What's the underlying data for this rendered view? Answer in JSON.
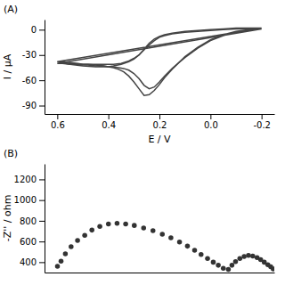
{
  "chart_data": [
    {
      "type": "line",
      "title": "(A)",
      "xlabel": "E / V",
      "ylabel": "I / μA",
      "xlim": [
        0.65,
        -0.25
      ],
      "ylim": [
        -100,
        12
      ],
      "xticks": [
        0.6,
        0.4,
        0.2,
        {
          "value": 0.0,
          "label": "0.0"
        },
        -0.2
      ],
      "yticks": [
        0,
        -30,
        -60,
        -90
      ],
      "x": [
        0.6,
        0.58,
        0.55,
        0.52,
        0.5,
        0.48,
        0.45,
        0.42,
        0.4,
        0.38,
        0.36,
        0.34,
        0.32,
        0.3,
        0.28,
        0.26,
        0.24,
        0.22,
        0.2,
        0.18,
        0.15,
        0.12,
        0.1,
        0.05,
        0.0,
        -0.05,
        -0.1,
        -0.15,
        -0.2,
        0.6,
        0.55,
        0.5,
        0.45,
        0.4,
        0.38,
        0.35,
        0.32,
        0.3,
        0.28,
        0.26,
        0.24,
        0.22,
        0.2,
        0.18,
        0.15,
        0.1,
        0.05,
        0.0,
        -0.05,
        -0.1,
        -0.15,
        -0.2
      ],
      "series": [
        {
          "color": "#444444",
          "values": [
            -40,
            -40,
            -41,
            -41,
            -42,
            -42,
            -43,
            -43,
            -44,
            -44,
            -45,
            -46,
            -48,
            -52,
            -58,
            -66,
            -70,
            -68,
            -62,
            -55,
            -46,
            -38,
            -33,
            -22,
            -13,
            -7,
            -3,
            -1,
            1,
            -40,
            -40,
            -41,
            -41,
            -41,
            -41,
            -40,
            -37,
            -34,
            -30,
            -24,
            -18,
            -13,
            -9,
            -7,
            -5,
            -3,
            -2,
            -1,
            0,
            1,
            1,
            1
          ]
        },
        {
          "color": "#444444",
          "values": [
            -38,
            -38,
            -39,
            -40,
            -41,
            -41,
            -42,
            -43,
            -44,
            -45,
            -47,
            -50,
            -55,
            -62,
            -70,
            -78,
            -77,
            -72,
            -65,
            -57,
            -47,
            -38,
            -32,
            -21,
            -12,
            -6,
            -2,
            0,
            2,
            -38,
            -41,
            -43,
            -44,
            -44,
            -43,
            -41,
            -38,
            -35,
            -30,
            -23,
            -16,
            -11,
            -8,
            -6,
            -4,
            -2,
            -1,
            0,
            1,
            2,
            2,
            2
          ]
        }
      ]
    },
    {
      "type": "scatter",
      "title": "(B)",
      "ylabel": "-Z'' / ohm",
      "xlim": [
        0,
        3200
      ],
      "ylim": [
        300,
        1350
      ],
      "yticks": [
        400,
        600,
        800,
        1000,
        1200
      ],
      "tick_labels": "y",
      "series": [
        {
          "color": "#333333",
          "marker": "circle",
          "x": [
            180,
            230,
            290,
            370,
            460,
            560,
            660,
            770,
            890,
            1010,
            1130,
            1250,
            1380,
            1510,
            1640,
            1760,
            1880,
            1990,
            2090,
            2180,
            2270,
            2350,
            2420,
            2490
          ],
          "values": [
            360,
            410,
            480,
            550,
            610,
            660,
            710,
            745,
            770,
            775,
            770,
            755,
            730,
            705,
            670,
            635,
            595,
            555,
            515,
            475,
            435,
            400,
            370,
            340
          ]
        },
        {
          "color": "#333333",
          "marker": "circle",
          "x": [
            2560,
            2610,
            2660,
            2720,
            2780,
            2840,
            2900,
            2960,
            3010,
            3060,
            3110,
            3150,
            3185
          ],
          "values": [
            330,
            370,
            405,
            435,
            455,
            465,
            460,
            445,
            425,
            400,
            375,
            355,
            335
          ]
        }
      ]
    }
  ]
}
